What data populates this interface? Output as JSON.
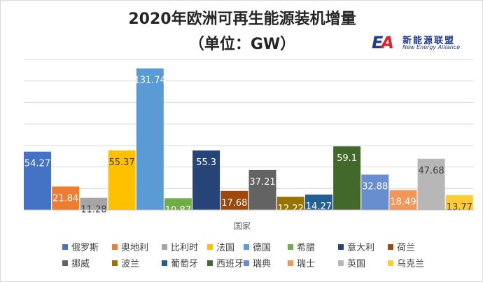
{
  "chart_data": {
    "type": "bar",
    "title": "2020年欧洲可再生能源装机增量",
    "subtitle": "（单位：GW）",
    "xlabel": "国家",
    "ylabel": "",
    "ylim": [
      0,
      140
    ],
    "grid": true,
    "legend_position": "bottom",
    "series": [
      {
        "name": "俄罗斯",
        "value": 54.27,
        "label": "54.27",
        "color": "#4472c4"
      },
      {
        "name": "奥地利",
        "value": 21.84,
        "label": "21.84",
        "color": "#ed7d31"
      },
      {
        "name": "比利时",
        "value": 11.28,
        "label": "11.28",
        "color": "#a5a5a5"
      },
      {
        "name": "法国",
        "value": 55.37,
        "label": "55.37",
        "color": "#ffc000"
      },
      {
        "name": "德国",
        "value": 131.74,
        "label": "131.74",
        "color": "#5b9bd5"
      },
      {
        "name": "希腊",
        "value": 10.87,
        "label": "10.87",
        "color": "#70ad47"
      },
      {
        "name": "意大利",
        "value": 55.3,
        "label": "55.3",
        "color": "#264478"
      },
      {
        "name": "荷兰",
        "value": 17.68,
        "label": "17.68",
        "color": "#9e480e"
      },
      {
        "name": "挪威",
        "value": 37.21,
        "label": "37.21",
        "color": "#636363"
      },
      {
        "name": "波兰",
        "value": 12.22,
        "label": "12.22",
        "color": "#997300"
      },
      {
        "name": "葡萄牙",
        "value": 14.27,
        "label": "14.27",
        "color": "#255e91"
      },
      {
        "name": "西班牙",
        "value": 59.1,
        "label": "59.1",
        "color": "#43682b"
      },
      {
        "name": "瑞典",
        "value": 32.88,
        "label": "32.88",
        "color": "#698ed0"
      },
      {
        "name": "瑞士",
        "value": 18.49,
        "label": "18.49",
        "color": "#f1975a"
      },
      {
        "name": "英国",
        "value": 47.68,
        "label": "47.68",
        "color": "#b7b7b7"
      },
      {
        "name": "乌克兰",
        "value": 13.77,
        "label": "13.77",
        "color": "#ffcd33"
      }
    ]
  },
  "logo": {
    "mark_e": "E",
    "mark_a": "A",
    "name_cn": "新能源联盟",
    "name_en": "New Energy Alliance"
  }
}
